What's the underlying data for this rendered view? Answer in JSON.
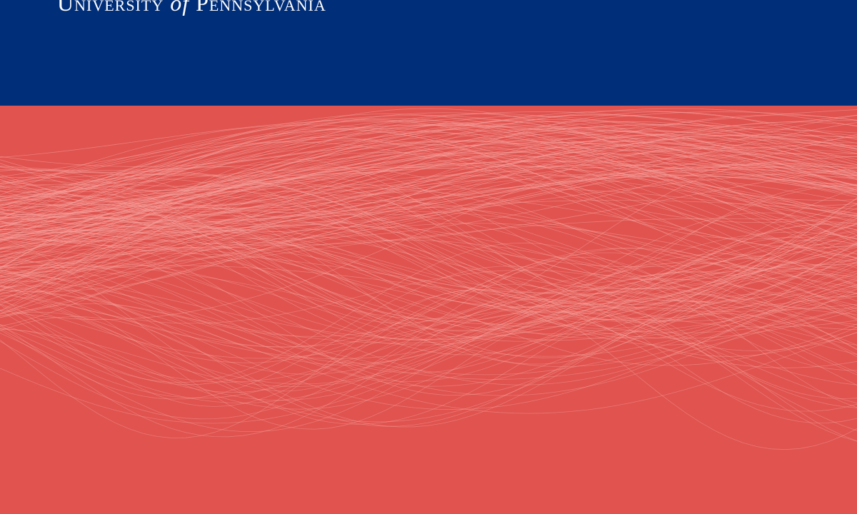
{
  "header": {
    "wordmark_part1": "University",
    "wordmark_of": "of",
    "wordmark_part2": "Pennsylvania"
  },
  "colors": {
    "header_bg": "#002E79",
    "body_bg": "#E0534F",
    "line_color": "#F8A39E"
  }
}
